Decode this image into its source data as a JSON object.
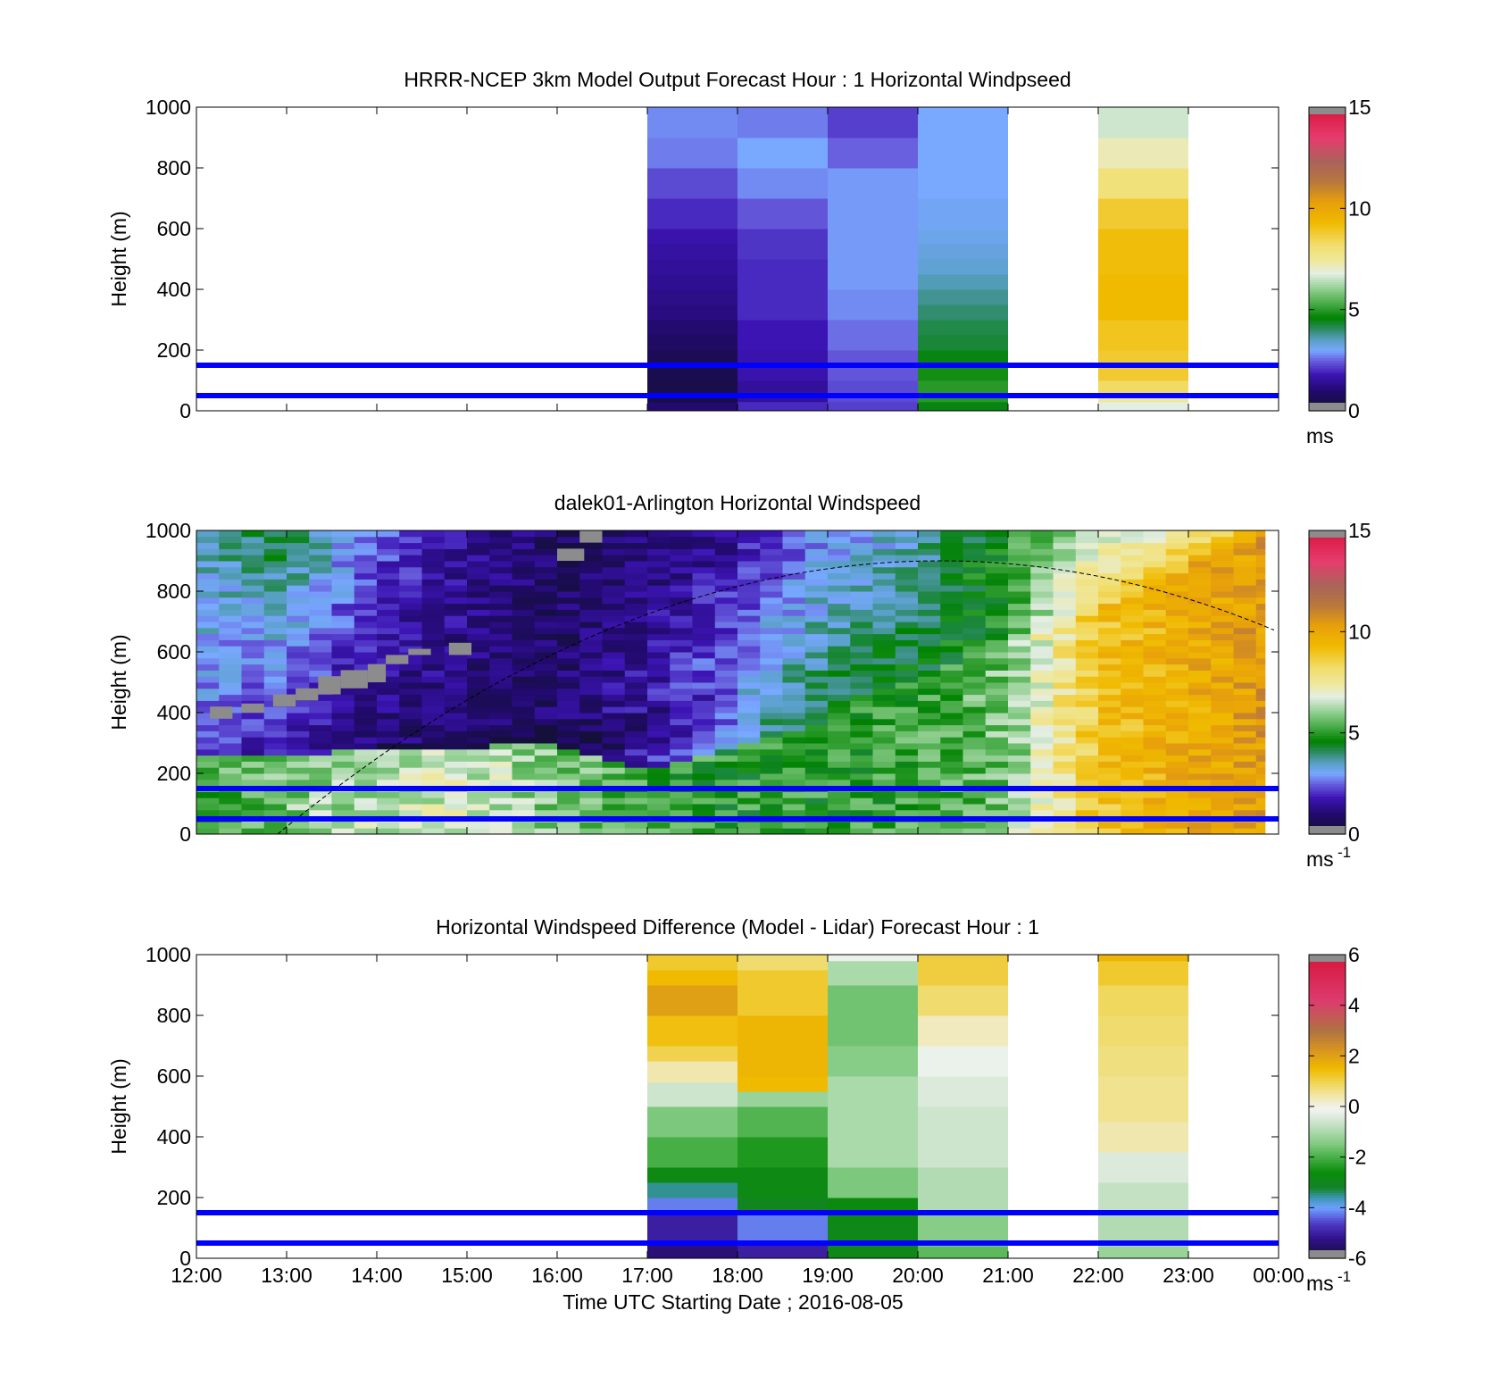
{
  "chart_data": [
    {
      "type": "heatmap",
      "title": "HRRR-NCEP 3km Model Output   Forecast Hour : 1 Horizontal Windpseed",
      "ylabel": "Height (m)",
      "xlabel": "",
      "ylim": [
        0,
        1000
      ],
      "xlim_hours": [
        12,
        24
      ],
      "yticks": [
        "0",
        "200",
        "400",
        "600",
        "800",
        "1000"
      ],
      "xticks": [],
      "colorbar": {
        "ticks": [
          "0",
          "5",
          "10",
          "15"
        ],
        "range": [
          0,
          15
        ],
        "unit": "ms",
        "palette": "speed"
      },
      "reference_lines_m": [
        50,
        150
      ],
      "columns": [
        {
          "start": 17,
          "end": 18,
          "levels": [
            [
              0,
              30,
              1.0
            ],
            [
              30,
              60,
              0.3
            ],
            [
              60,
              100,
              0.4
            ],
            [
              100,
              150,
              0.5
            ],
            [
              150,
              200,
              0.6
            ],
            [
              200,
              250,
              0.8
            ],
            [
              250,
              300,
              1.0
            ],
            [
              300,
              350,
              1.2
            ],
            [
              350,
              400,
              1.3
            ],
            [
              400,
              450,
              1.4
            ],
            [
              450,
              500,
              1.5
            ],
            [
              500,
              550,
              1.6
            ],
            [
              550,
              600,
              1.7
            ],
            [
              600,
              700,
              2.0
            ],
            [
              700,
              800,
              2.3
            ],
            [
              800,
              900,
              2.7
            ],
            [
              900,
              1000,
              2.8
            ]
          ]
        },
        {
          "start": 18,
          "end": 19,
          "levels": [
            [
              0,
              30,
              2.0
            ],
            [
              30,
              100,
              1.5
            ],
            [
              100,
              200,
              1.7
            ],
            [
              200,
              300,
              1.8
            ],
            [
              300,
              400,
              2.0
            ],
            [
              400,
              500,
              2.0
            ],
            [
              500,
              600,
              2.1
            ],
            [
              600,
              700,
              2.4
            ],
            [
              700,
              800,
              2.8
            ],
            [
              800,
              900,
              3.0
            ],
            [
              900,
              1000,
              2.7
            ]
          ]
        },
        {
          "start": 19,
          "end": 20,
          "levels": [
            [
              0,
              30,
              2.2
            ],
            [
              30,
              100,
              2.3
            ],
            [
              100,
              200,
              2.4
            ],
            [
              200,
              300,
              2.6
            ],
            [
              300,
              400,
              2.8
            ],
            [
              400,
              500,
              2.9
            ],
            [
              500,
              600,
              2.9
            ],
            [
              600,
              700,
              2.9
            ],
            [
              700,
              800,
              2.9
            ],
            [
              800,
              900,
              2.5
            ],
            [
              900,
              1000,
              2.2
            ]
          ]
        },
        {
          "start": 20,
          "end": 21,
          "levels": [
            [
              0,
              30,
              4.5
            ],
            [
              30,
              100,
              5.0
            ],
            [
              100,
              150,
              4.8
            ],
            [
              150,
              200,
              4.5
            ],
            [
              200,
              250,
              4.3
            ],
            [
              250,
              300,
              4.2
            ],
            [
              300,
              350,
              4.0
            ],
            [
              350,
              400,
              3.8
            ],
            [
              400,
              450,
              3.6
            ],
            [
              450,
              500,
              3.4
            ],
            [
              500,
              550,
              3.3
            ],
            [
              550,
              600,
              3.2
            ],
            [
              600,
              700,
              3.1
            ],
            [
              700,
              800,
              3.0
            ],
            [
              800,
              900,
              3.0
            ],
            [
              900,
              1000,
              3.0
            ]
          ]
        },
        {
          "start": 22,
          "end": 23,
          "levels": [
            [
              0,
              30,
              6.8
            ],
            [
              30,
              60,
              7.5
            ],
            [
              60,
              100,
              8.3
            ],
            [
              100,
              200,
              8.8
            ],
            [
              200,
              300,
              9.0
            ],
            [
              300,
              450,
              9.3
            ],
            [
              450,
              600,
              9.2
            ],
            [
              600,
              700,
              8.8
            ],
            [
              700,
              800,
              8.0
            ],
            [
              800,
              900,
              7.2
            ],
            [
              900,
              1000,
              6.6
            ]
          ]
        }
      ]
    },
    {
      "type": "heatmap",
      "title": "dalek01-Arlington  Horizontal Windspeed",
      "ylabel": "Height (m)",
      "xlabel": "",
      "ylim": [
        0,
        1000
      ],
      "xlim_hours": [
        12,
        24
      ],
      "yticks": [
        "0",
        "200",
        "400",
        "600",
        "800",
        "1000"
      ],
      "xticks": [],
      "colorbar": {
        "ticks": [
          "0",
          "5",
          "10",
          "15"
        ],
        "range": [
          0,
          15
        ],
        "unit": "ms",
        "unit_exp": "-1",
        "palette": "speed"
      },
      "reference_lines_m": [
        50,
        150
      ],
      "data_end_hour": 23.85,
      "column_width_hours": 0.25,
      "bin_height_m": 20,
      "profile": {
        "surface": [
          [
            12,
            5.2
          ],
          [
            14,
            6.5
          ],
          [
            15,
            6.8
          ],
          [
            16,
            5.8
          ],
          [
            17,
            5.2
          ],
          [
            18,
            5.0
          ],
          [
            19,
            5.0
          ],
          [
            20,
            5.2
          ],
          [
            21,
            5.8
          ],
          [
            22,
            9.0
          ],
          [
            23,
            9.8
          ],
          [
            24,
            10.5
          ]
        ],
        "mid": [
          [
            12,
            2.5
          ],
          [
            13,
            1.5
          ],
          [
            14,
            1.0
          ],
          [
            15,
            1.0
          ],
          [
            16,
            1.0
          ],
          [
            17,
            2.0
          ],
          [
            18,
            3.5
          ],
          [
            19,
            4.5
          ],
          [
            20,
            4.5
          ],
          [
            21,
            5.0
          ],
          [
            22,
            8.5
          ],
          [
            23,
            9.5
          ],
          [
            24,
            10.5
          ]
        ],
        "top": [
          [
            12,
            3.5
          ],
          [
            13,
            4.5
          ],
          [
            14,
            2.5
          ],
          [
            15,
            1.5
          ],
          [
            16,
            0.8
          ],
          [
            17,
            1.0
          ],
          [
            18,
            1.5
          ],
          [
            19,
            2.8
          ],
          [
            20,
            3.5
          ],
          [
            21,
            5.0
          ],
          [
            22,
            6.5
          ],
          [
            23,
            7.5
          ],
          [
            24,
            9.5
          ]
        ],
        "surface_depth_m": [
          [
            12,
            250
          ],
          [
            16,
            300
          ],
          [
            17,
            220
          ],
          [
            18,
            280
          ],
          [
            19,
            380
          ],
          [
            20,
            520
          ],
          [
            21,
            650
          ],
          [
            22,
            750
          ],
          [
            24,
            1000
          ]
        ],
        "mid_peak_height_m": [
          [
            12,
            150
          ],
          [
            17,
            350
          ],
          [
            19,
            500
          ],
          [
            21,
            700
          ],
          [
            24,
            800
          ]
        ]
      },
      "missing_patches": [
        {
          "start": 12.15,
          "end": 12.4,
          "bottom": 380,
          "top": 420
        },
        {
          "start": 12.5,
          "end": 12.75,
          "bottom": 400,
          "top": 430
        },
        {
          "start": 12.85,
          "end": 13.1,
          "bottom": 420,
          "top": 460
        },
        {
          "start": 13.1,
          "end": 13.35,
          "bottom": 440,
          "top": 480
        },
        {
          "start": 13.35,
          "end": 13.6,
          "bottom": 460,
          "top": 520
        },
        {
          "start": 13.6,
          "end": 13.9,
          "bottom": 480,
          "top": 540
        },
        {
          "start": 13.9,
          "end": 14.1,
          "bottom": 500,
          "top": 560
        },
        {
          "start": 14.1,
          "end": 14.35,
          "bottom": 560,
          "top": 590
        },
        {
          "start": 14.35,
          "end": 14.6,
          "bottom": 590,
          "top": 610
        },
        {
          "start": 14.8,
          "end": 15.05,
          "bottom": 590,
          "top": 630
        },
        {
          "start": 16.0,
          "end": 16.3,
          "bottom": 900,
          "top": 940
        },
        {
          "start": 16.25,
          "end": 16.5,
          "bottom": 960,
          "top": 1000
        }
      ],
      "curve": {
        "type": "dashed",
        "peak_hour": 20.25,
        "peak_height_m": 900,
        "zero_hour": 12.9
      }
    },
    {
      "type": "heatmap",
      "title": "Horizontal Windspeed Difference (Model - Lidar) Forecast Hour : 1",
      "ylabel": "Height (m)",
      "xlabel": "Time UTC  Starting Date ; 2016-08-05",
      "ylim": [
        0,
        1000
      ],
      "xlim_hours": [
        12,
        24
      ],
      "yticks": [
        "0",
        "200",
        "400",
        "600",
        "800",
        "1000"
      ],
      "xticks": [
        "12:00",
        "13:00",
        "14:00",
        "15:00",
        "16:00",
        "17:00",
        "18:00",
        "19:00",
        "20:00",
        "21:00",
        "22:00",
        "23:00",
        "00:00"
      ],
      "colorbar": {
        "ticks": [
          "-6",
          "-4",
          "-2",
          "0",
          "2",
          "4",
          "6"
        ],
        "range": [
          -6,
          6
        ],
        "unit": "ms",
        "unit_exp": "-1",
        "palette": "diff"
      },
      "reference_lines_m": [
        50,
        150
      ],
      "columns": [
        {
          "start": 17,
          "end": 18,
          "levels": [
            [
              0,
              60,
              -5.4
            ],
            [
              60,
              150,
              -5.0
            ],
            [
              150,
              200,
              -4.2
            ],
            [
              200,
              250,
              -3.5
            ],
            [
              250,
              300,
              -2.8
            ],
            [
              300,
              400,
              -2.0
            ],
            [
              400,
              500,
              -1.5
            ],
            [
              500,
              580,
              -0.6
            ],
            [
              580,
              650,
              0.4
            ],
            [
              650,
              700,
              1.0
            ],
            [
              700,
              800,
              1.4
            ],
            [
              800,
              900,
              2.0
            ],
            [
              900,
              950,
              1.5
            ],
            [
              950,
              1000,
              1.2
            ]
          ]
        },
        {
          "start": 18,
          "end": 19,
          "levels": [
            [
              0,
              60,
              -5.0
            ],
            [
              60,
              150,
              -4.2
            ],
            [
              150,
              200,
              -3.0
            ],
            [
              200,
              300,
              -2.8
            ],
            [
              300,
              400,
              -2.4
            ],
            [
              400,
              500,
              -1.9
            ],
            [
              500,
              550,
              -1.2
            ],
            [
              550,
              600,
              1.5
            ],
            [
              600,
              800,
              1.6
            ],
            [
              800,
              950,
              1.2
            ],
            [
              950,
              1000,
              0.8
            ]
          ]
        },
        {
          "start": 19,
          "end": 20,
          "levels": [
            [
              0,
              120,
              -2.9
            ],
            [
              120,
              200,
              -2.7
            ],
            [
              200,
              300,
              -1.5
            ],
            [
              300,
              500,
              -1.0
            ],
            [
              500,
              600,
              -1.0
            ],
            [
              600,
              700,
              -1.4
            ],
            [
              700,
              900,
              -1.6
            ],
            [
              900,
              980,
              -1.0
            ],
            [
              980,
              1000,
              -0.2
            ]
          ]
        },
        {
          "start": 20,
          "end": 21,
          "levels": [
            [
              0,
              40,
              -1.8
            ],
            [
              40,
              150,
              -1.4
            ],
            [
              150,
              300,
              -0.9
            ],
            [
              300,
              500,
              -0.6
            ],
            [
              500,
              600,
              -0.4
            ],
            [
              600,
              700,
              -0.2
            ],
            [
              700,
              800,
              0.3
            ],
            [
              800,
              900,
              0.8
            ],
            [
              900,
              1000,
              1.1
            ]
          ]
        },
        {
          "start": 22,
          "end": 23,
          "levels": [
            [
              0,
              40,
              -1.2
            ],
            [
              40,
              150,
              -0.9
            ],
            [
              150,
              250,
              -0.7
            ],
            [
              250,
              350,
              -0.4
            ],
            [
              350,
              450,
              0.4
            ],
            [
              450,
              600,
              0.6
            ],
            [
              600,
              700,
              0.7
            ],
            [
              700,
              800,
              0.8
            ],
            [
              800,
              900,
              0.9
            ],
            [
              900,
              980,
              1.2
            ],
            [
              980,
              1000,
              1.6
            ]
          ]
        }
      ]
    }
  ],
  "colors": {
    "reference_line": "#0000ff",
    "missing": "#8c8c8c"
  }
}
